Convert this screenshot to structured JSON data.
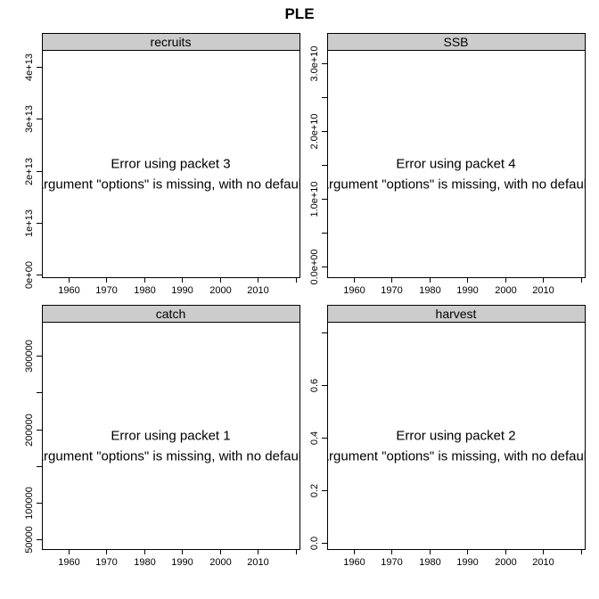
{
  "chart_data": {
    "title": "PLE",
    "panels": [
      {
        "type": "line",
        "strip": "recruits",
        "x_ticks": [
          1960,
          1970,
          1980,
          1990,
          2000,
          2010
        ],
        "xlim": [
          1953,
          2021
        ],
        "y_ticks": [
          0,
          10000000000000.0,
          20000000000000.0,
          30000000000000.0,
          40000000000000.0
        ],
        "y_tick_labels": [
          "0e+00",
          "1e+13",
          "2e+13",
          "3e+13",
          "4e+13"
        ],
        "ylim": [
          -530000000000.0,
          43300000000000.0
        ],
        "error_lines": [
          "Error using packet 3",
          "argument \"options\" is missing, with no default"
        ]
      },
      {
        "type": "line",
        "strip": "SSB",
        "x_ticks": [
          1960,
          1970,
          1980,
          1990,
          2000,
          2010
        ],
        "xlim": [
          1953,
          2021
        ],
        "y_ticks": [
          0,
          5000000000.0,
          10000000000.0,
          15000000000.0,
          20000000000.0,
          25000000000.0,
          30000000000.0
        ],
        "y_tick_labels": [
          "0.0e+00",
          "",
          "1.0e+10",
          "",
          "2.0e+10",
          "",
          "3.0e+10"
        ],
        "ylim": [
          -1600000000.0,
          32000000000.0
        ],
        "error_lines": [
          "Error using packet 4",
          "argument \"options\" is missing, with no default"
        ]
      },
      {
        "type": "line",
        "strip": "catch",
        "x_ticks": [
          1960,
          1970,
          1980,
          1990,
          2000,
          2010
        ],
        "xlim": [
          1953,
          2021
        ],
        "y_ticks": [
          50000,
          100000,
          150000,
          200000,
          250000,
          300000
        ],
        "y_tick_labels": [
          "50000",
          "100000",
          "",
          "200000",
          "",
          "300000"
        ],
        "ylim": [
          36500,
          346500
        ],
        "error_lines": [
          "Error using packet 1",
          "argument \"options\" is missing, with no default"
        ]
      },
      {
        "type": "line",
        "strip": "harvest",
        "x_ticks": [
          1960,
          1970,
          1980,
          1990,
          2000,
          2010
        ],
        "xlim": [
          1953,
          2021
        ],
        "y_ticks": [
          0,
          0.2,
          0.4,
          0.6,
          0.8
        ],
        "y_tick_labels": [
          "0.0",
          "0.2",
          "0.4",
          "0.6",
          ""
        ],
        "ylim": [
          -0.025,
          0.84
        ],
        "error_lines": [
          "Error using packet 2",
          "argument \"options\" is missing, with no default"
        ]
      }
    ],
    "colors": {
      "strip": "#cccccc",
      "axis": "#000000"
    }
  }
}
